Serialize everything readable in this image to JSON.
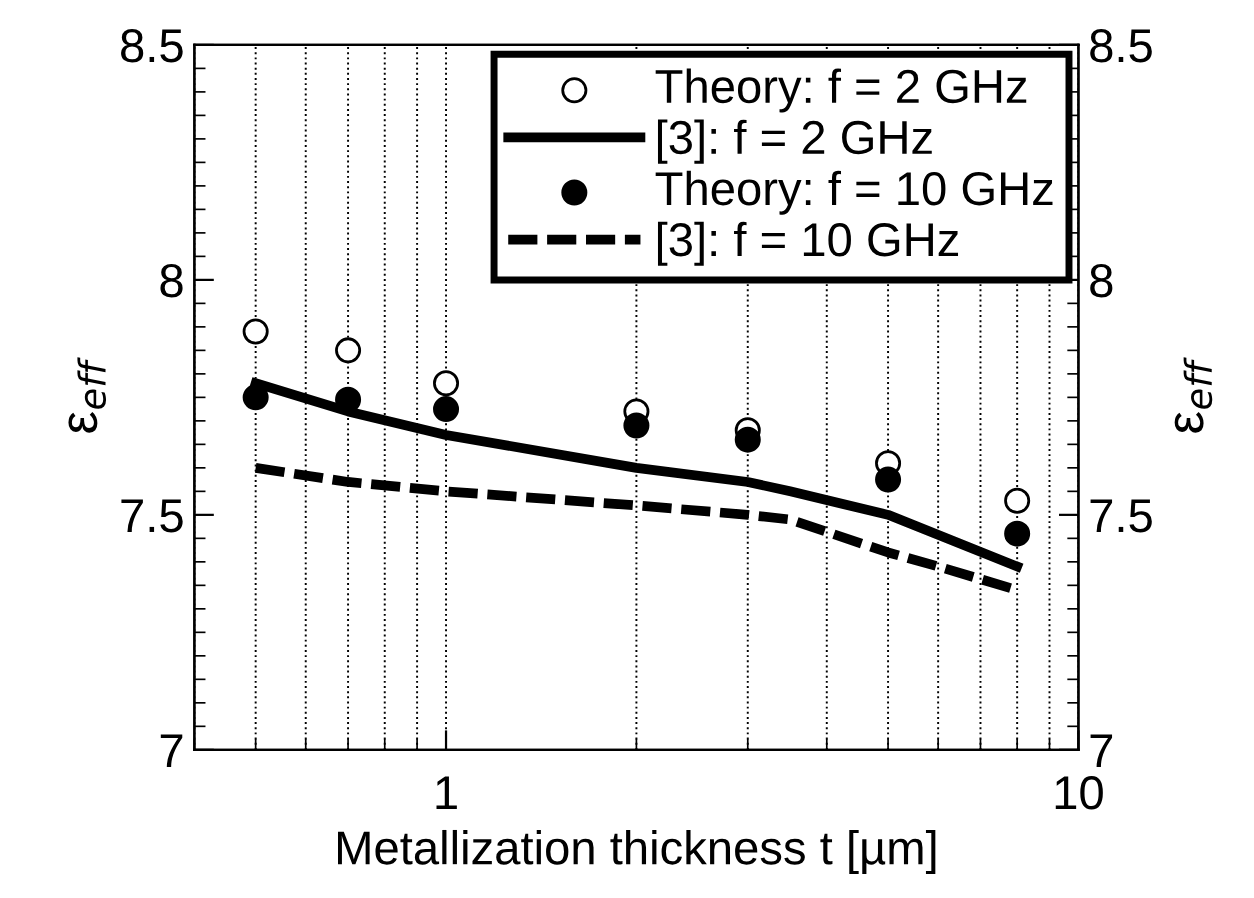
{
  "chart_data": {
    "type": "line",
    "xlabel": "Metallization thickness t [µm]",
    "ylabel": "ε$_{eff}$",
    "y2label": "ε$_{eff}$",
    "log": "x",
    "xlim": [
      0.4,
      10
    ],
    "xticks": [
      1,
      10
    ],
    "ylim": [
      7,
      8.5
    ],
    "yticks": [
      7,
      {
        "value": 7.5,
        "label": "7.5"
      },
      8,
      {
        "value": 8.5,
        "label": "8.5"
      }
    ],
    "y2lim": [
      7,
      8.5
    ],
    "y2ticks": [
      7,
      {
        "value": 7.5,
        "label": "7.5"
      },
      8,
      {
        "value": 8.5,
        "label": "8.5"
      }
    ],
    "grid": "x",
    "legend": "top right",
    "series": [
      {
        "name": "Theory: f = 2 GHz",
        "type": "scatter",
        "marker": "circle",
        "color": "#ffffff",
        "x": [
          0.5,
          0.7,
          1,
          2,
          3,
          5,
          8
        ],
        "values": [
          7.89,
          7.85,
          7.78,
          7.72,
          7.68,
          7.61,
          7.53
        ]
      },
      {
        "name": "[3]: f = 2 GHz",
        "line_style": "solid",
        "color": "#000000",
        "x": [
          0.5,
          0.7,
          1,
          2,
          3,
          3.5,
          5,
          8
        ],
        "values": [
          7.78,
          7.72,
          7.67,
          7.6,
          7.57,
          7.55,
          7.5,
          7.39
        ]
      },
      {
        "name": "Theory: f = 10 GHz",
        "type": "scatter",
        "marker": "circle",
        "color": "#000000",
        "x": [
          0.5,
          0.7,
          1,
          2,
          3,
          5,
          8
        ],
        "values": [
          7.75,
          7.745,
          7.725,
          7.69,
          7.66,
          7.575,
          7.46
        ]
      },
      {
        "name": "[3]: f = 10 GHz",
        "line_style": "dashed",
        "color": "#000000",
        "x": [
          0.5,
          0.7,
          1,
          2,
          3,
          3.5,
          5,
          6,
          8
        ],
        "values": [
          7.6,
          7.57,
          7.55,
          7.52,
          7.5,
          7.49,
          7.42,
          7.39,
          7.34
        ]
      }
    ]
  }
}
